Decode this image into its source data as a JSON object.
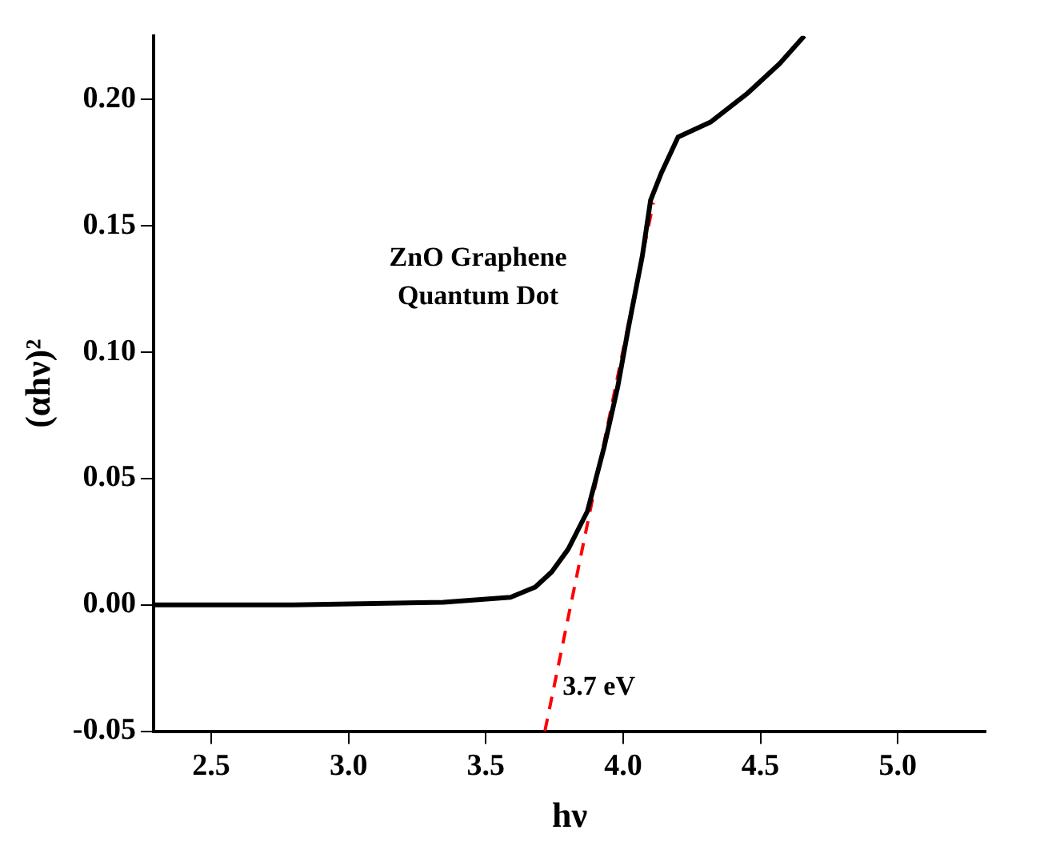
{
  "chart_data": {
    "type": "line",
    "xlabel": "hν",
    "ylabel": "(αhν)²",
    "xlim": [
      2.29,
      5.32
    ],
    "ylim": [
      -0.05,
      0.225
    ],
    "xticks": [
      2.5,
      {
        "value": 3,
        "label": "3.0"
      },
      3.5,
      {
        "value": 4,
        "label": "4.0"
      },
      4.5,
      {
        "value": 5,
        "label": "5.0"
      }
    ],
    "yticks": [
      {
        "value": -0.05,
        "label": "-0.05"
      },
      {
        "value": 0,
        "label": "0.00"
      },
      {
        "value": 0.05,
        "label": "0.05"
      },
      {
        "value": 0.1,
        "label": "0.10"
      },
      {
        "value": 0.15,
        "label": "0.15"
      },
      {
        "value": 0.2,
        "label": "0.20"
      }
    ],
    "grid": false,
    "legend": false,
    "marker": "none",
    "annotations": [
      "ZnO Graphene\nQuantum Dot",
      {
        "text": "3.7 eV",
        "x": 3.71,
        "y": -0.05
      }
    ],
    "series": [
      {
        "color": "#000000",
        "line_style": "solid",
        "x": [
          2.29,
          2.8,
          3.345,
          3.59,
          3.68,
          3.74,
          3.8,
          3.87,
          3.93,
          3.98,
          4.02,
          4.07,
          4.1,
          4.14,
          4.2,
          4.32,
          4.45,
          4.57,
          4.66
        ],
        "values": [
          0,
          0,
          0.001,
          0.003,
          0.007,
          0.013,
          0.022,
          0.037,
          0.062,
          0.086,
          0.11,
          0.138,
          0.16,
          0.171,
          0.185,
          0.191,
          0.202,
          0.214,
          0.225
        ]
      },
      {
        "type": "line",
        "color": "#ff0000",
        "line_style": "dashed",
        "x": [
          3.715,
          4.11
        ],
        "values": [
          -0.05,
          0.159
        ]
      }
    ]
  }
}
